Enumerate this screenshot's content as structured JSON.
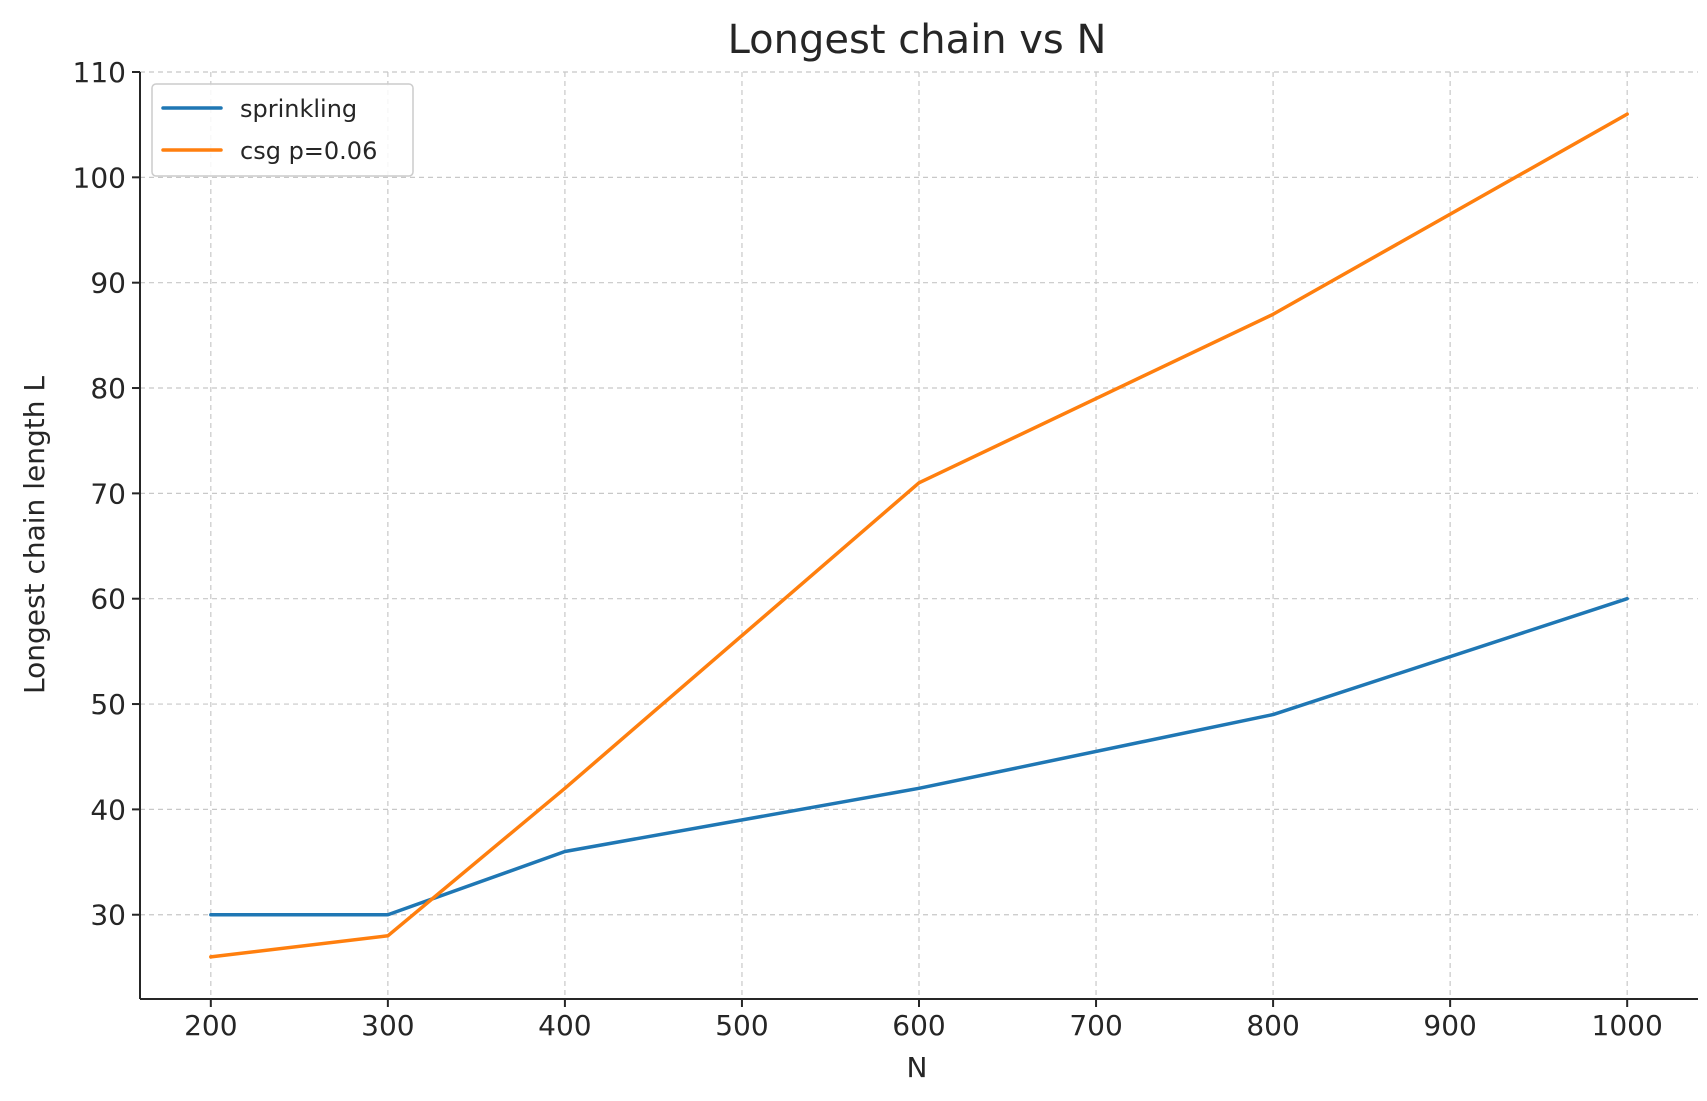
{
  "chart_data": {
    "type": "line",
    "title": "Longest chain vs N",
    "xlabel": "N",
    "ylabel": "Longest chain length L",
    "x": [
      200,
      300,
      400,
      600,
      800,
      1000
    ],
    "xticks": [
      200,
      300,
      400,
      500,
      600,
      700,
      800,
      900,
      1000
    ],
    "yticks": [
      30,
      40,
      50,
      60,
      70,
      80,
      90,
      100,
      110
    ],
    "xlim": [
      160,
      1040
    ],
    "ylim": [
      22,
      110
    ],
    "grid": true,
    "legend_position": "top-left",
    "series": [
      {
        "name": "sprinkling",
        "color": "#1f77b4",
        "values": [
          30,
          30,
          36,
          42,
          49,
          60
        ]
      },
      {
        "name": "csg p=0.06",
        "color": "#ff7f0e",
        "values": [
          26,
          28,
          42,
          71,
          87,
          106
        ]
      }
    ]
  }
}
